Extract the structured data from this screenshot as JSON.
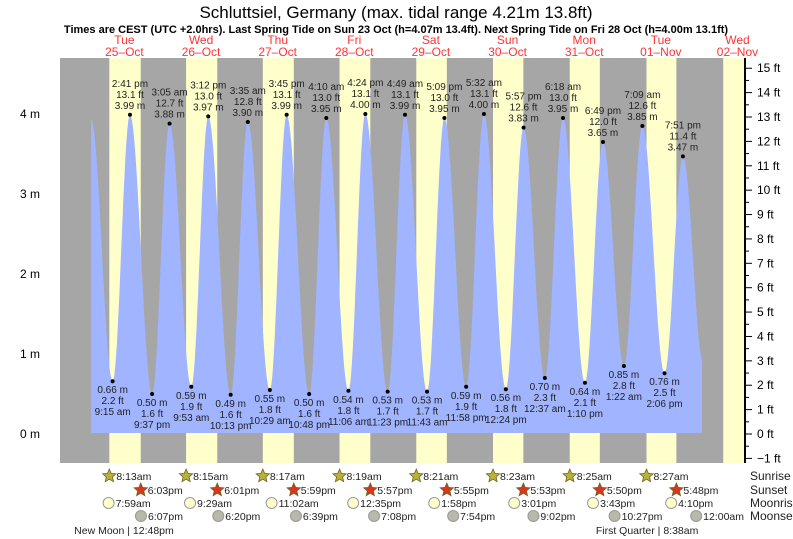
{
  "chart_data": {
    "type": "area",
    "title": "Schluttsiel, Germany (max. tidal range 4.21m 13.8ft)",
    "subtitle": "Times are CEST (UTC +2.0hrs). Last Spring Tide on Sun 23 Oct (h=4.07m 13.4ft). Next Spring Tide on Fri 28 Oct (h=4.00m 13.1ft)",
    "days": [
      {
        "dow": "Tue",
        "date": "25–Oct"
      },
      {
        "dow": "Wed",
        "date": "26–Oct"
      },
      {
        "dow": "Thu",
        "date": "27–Oct"
      },
      {
        "dow": "Fri",
        "date": "28–Oct"
      },
      {
        "dow": "Sat",
        "date": "29–Oct"
      },
      {
        "dow": "Sun",
        "date": "30–Oct"
      },
      {
        "dow": "Mon",
        "date": "31–Oct"
      },
      {
        "dow": "Tue",
        "date": "01–Nov"
      },
      {
        "dow": "Wed",
        "date": "02–Nov"
      }
    ],
    "y_left": {
      "unit": "m",
      "ticks": [
        "0 m",
        "1 m",
        "2 m",
        "3 m",
        "4 m"
      ],
      "values": [
        0,
        1,
        2,
        3,
        4
      ]
    },
    "y_right": {
      "unit": "ft",
      "ticks": [
        "−1 ft",
        "0 ft",
        "1 ft",
        "2 ft",
        "3 ft",
        "4 ft",
        "5 ft",
        "6 ft",
        "7 ft",
        "8 ft",
        "9 ft",
        "10 ft",
        "11 ft",
        "12 ft",
        "13 ft",
        "14 ft",
        "15 ft"
      ],
      "values": [
        -1,
        0,
        1,
        2,
        3,
        4,
        5,
        6,
        7,
        8,
        9,
        10,
        11,
        12,
        13,
        14,
        15
      ]
    },
    "curve_start": {
      "day": 0,
      "hours": 2.5,
      "m": 3.93
    },
    "curve_end": {
      "day": 8,
      "hours": 2.2,
      "m": 0.9
    },
    "tides": [
      {
        "type": "low",
        "day": 0,
        "time": "9:15 am",
        "m": "0.66 m",
        "ft": "2.2 ft"
      },
      {
        "type": "high",
        "day": 0,
        "time": "2:41 pm",
        "m": "3.99 m",
        "ft": "13.1 ft"
      },
      {
        "type": "low",
        "day": 0,
        "time": "9:37 pm",
        "m": "0.50 m",
        "ft": "1.6 ft"
      },
      {
        "type": "high",
        "day": 1,
        "time": "3:05 am",
        "m": "3.88 m",
        "ft": "12.7 ft"
      },
      {
        "type": "low",
        "day": 1,
        "time": "9:53 am",
        "m": "0.59 m",
        "ft": "1.9 ft"
      },
      {
        "type": "high",
        "day": 1,
        "time": "3:12 pm",
        "m": "3.97 m",
        "ft": "13.0 ft"
      },
      {
        "type": "low",
        "day": 1,
        "time": "10:13 pm",
        "m": "0.49 m",
        "ft": "1.6 ft"
      },
      {
        "type": "high",
        "day": 2,
        "time": "3:35 am",
        "m": "3.90 m",
        "ft": "12.8 ft"
      },
      {
        "type": "low",
        "day": 2,
        "time": "10:29 am",
        "m": "0.55 m",
        "ft": "1.8 ft"
      },
      {
        "type": "high",
        "day": 2,
        "time": "3:45 pm",
        "m": "3.99 m",
        "ft": "13.1 ft"
      },
      {
        "type": "low",
        "day": 2,
        "time": "10:48 pm",
        "m": "0.50 m",
        "ft": "1.6 ft"
      },
      {
        "type": "high",
        "day": 3,
        "time": "4:10 am",
        "m": "3.95 m",
        "ft": "13.0 ft"
      },
      {
        "type": "low",
        "day": 3,
        "time": "11:06 am",
        "m": "0.54 m",
        "ft": "1.8 ft"
      },
      {
        "type": "high",
        "day": 3,
        "time": "4:24 pm",
        "m": "4.00 m",
        "ft": "13.1 ft"
      },
      {
        "type": "low",
        "day": 3,
        "time": "11:23 pm",
        "m": "0.53 m",
        "ft": "1.7 ft"
      },
      {
        "type": "high",
        "day": 4,
        "time": "4:49 am",
        "m": "3.99 m",
        "ft": "13.1 ft"
      },
      {
        "type": "low",
        "day": 4,
        "time": "11:43 am",
        "m": "0.53 m",
        "ft": "1.7 ft"
      },
      {
        "type": "high",
        "day": 4,
        "time": "5:09 pm",
        "m": "3.95 m",
        "ft": "13.0 ft"
      },
      {
        "type": "low",
        "day": 4,
        "time": "11:58 pm",
        "m": "0.59 m",
        "ft": "1.9 ft"
      },
      {
        "type": "high",
        "day": 5,
        "time": "5:32 am",
        "m": "4.00 m",
        "ft": "13.1 ft"
      },
      {
        "type": "low",
        "day": 5,
        "time": "12:24 pm",
        "m": "0.56 m",
        "ft": "1.8 ft"
      },
      {
        "type": "high",
        "day": 5,
        "time": "5:57 pm",
        "m": "3.83 m",
        "ft": "12.6 ft"
      },
      {
        "type": "low",
        "day": 6,
        "time": "12:37 am",
        "m": "0.70 m",
        "ft": "2.3 ft"
      },
      {
        "type": "high",
        "day": 6,
        "time": "6:18 am",
        "m": "3.95 m",
        "ft": "13.0 ft"
      },
      {
        "type": "low",
        "day": 6,
        "time": "1:10 pm",
        "m": "0.64 m",
        "ft": "2.1 ft"
      },
      {
        "type": "high",
        "day": 6,
        "time": "6:49 pm",
        "m": "3.65 m",
        "ft": "12.0 ft"
      },
      {
        "type": "low",
        "day": 7,
        "time": "1:22 am",
        "m": "0.85 m",
        "ft": "2.8 ft"
      },
      {
        "type": "high",
        "day": 7,
        "time": "7:09 am",
        "m": "3.85 m",
        "ft": "12.6 ft"
      },
      {
        "type": "low",
        "day": 7,
        "time": "2:06 pm",
        "m": "0.76 m",
        "ft": "2.5 ft"
      },
      {
        "type": "high",
        "day": 7,
        "time": "7:51 pm",
        "m": "3.47 m",
        "ft": "11.4 ft"
      }
    ],
    "rows": {
      "sunrise": "Sunrise",
      "sunset": "Sunset",
      "moonrise": "Moonrise",
      "moonset": "Moonset"
    },
    "sunrise": [
      {
        "day": 0,
        "time": "8:13am"
      },
      {
        "day": 1,
        "time": "8:15am"
      },
      {
        "day": 2,
        "time": "8:17am"
      },
      {
        "day": 3,
        "time": "8:19am"
      },
      {
        "day": 4,
        "time": "8:21am"
      },
      {
        "day": 5,
        "time": "8:23am"
      },
      {
        "day": 6,
        "time": "8:25am"
      },
      {
        "day": 7,
        "time": "8:27am"
      }
    ],
    "sunset": [
      {
        "day": 0,
        "time": "6:03pm"
      },
      {
        "day": 1,
        "time": "6:01pm"
      },
      {
        "day": 2,
        "time": "5:59pm"
      },
      {
        "day": 3,
        "time": "5:57pm"
      },
      {
        "day": 4,
        "time": "5:55pm"
      },
      {
        "day": 5,
        "time": "5:53pm"
      },
      {
        "day": 6,
        "time": "5:50pm"
      },
      {
        "day": 7,
        "time": "5:48pm"
      }
    ],
    "moonrise": [
      {
        "day": 0,
        "time": "7:59am"
      },
      {
        "day": 1,
        "time": "9:29am"
      },
      {
        "day": 2,
        "time": "11:02am"
      },
      {
        "day": 3,
        "time": "12:35pm"
      },
      {
        "day": 4,
        "time": "1:58pm"
      },
      {
        "day": 5,
        "time": "3:01pm"
      },
      {
        "day": 6,
        "time": "3:43pm"
      },
      {
        "day": 7,
        "time": "4:10pm"
      }
    ],
    "moonset": [
      {
        "day": 0,
        "time": "6:07pm"
      },
      {
        "day": 1,
        "time": "6:20pm"
      },
      {
        "day": 2,
        "time": "6:39pm"
      },
      {
        "day": 3,
        "time": "7:08pm"
      },
      {
        "day": 4,
        "time": "7:54pm"
      },
      {
        "day": 5,
        "time": "9:02pm"
      },
      {
        "day": 6,
        "time": "10:27pm"
      },
      {
        "day": 8,
        "time": "12:00am"
      }
    ],
    "moon_phases": [
      {
        "day": 0,
        "time": "12:48pm",
        "label": "New Moon | 12:48pm"
      },
      {
        "day": 7,
        "time": "8:38am",
        "label": "First Quarter | 8:38am"
      }
    ],
    "colors": {
      "night": "#a6a6a6",
      "day": "#ffffcc",
      "water": "#a0b4ff",
      "day_label": "#ff3333",
      "sunrise_star": "#b8b23c",
      "sunset_star": "#d9361f",
      "moonrise": "#ffffcc",
      "moonset": "#b9b9aa"
    }
  }
}
